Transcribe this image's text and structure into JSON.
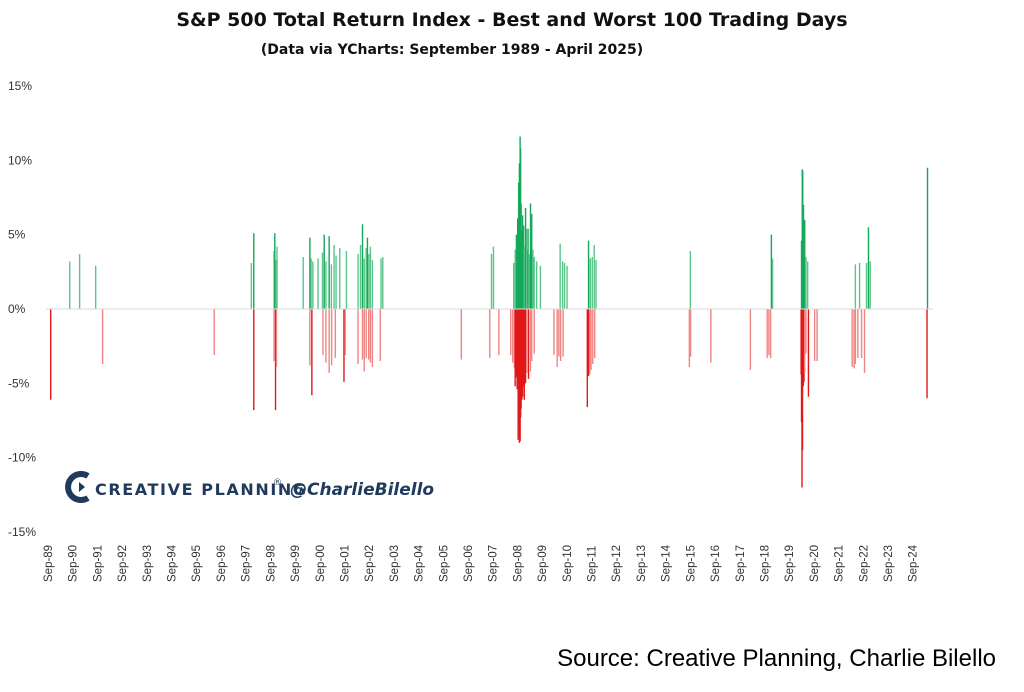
{
  "chart_data": {
    "type": "bar",
    "title": "S&P 500 Total Return Index - Best and Worst 100 Trading Days",
    "subtitle": "(Data via YCharts: September 1989 - April 2025)",
    "yticks": [
      "15%",
      "10%",
      "5%",
      "0%",
      "-5%",
      "-10%",
      "-15%"
    ],
    "ylim": [
      -15,
      15
    ],
    "xlim": [
      1989.67,
      2025.33
    ],
    "xticks": [
      {
        "label": "Sep-89",
        "x": 1989.67
      },
      {
        "label": "Sep-90",
        "x": 1990.67
      },
      {
        "label": "Sep-91",
        "x": 1991.67
      },
      {
        "label": "Sep-92",
        "x": 1992.67
      },
      {
        "label": "Sep-93",
        "x": 1993.67
      },
      {
        "label": "Sep-94",
        "x": 1994.67
      },
      {
        "label": "Sep-95",
        "x": 1995.67
      },
      {
        "label": "Sep-96",
        "x": 1996.67
      },
      {
        "label": "Sep-97",
        "x": 1997.67
      },
      {
        "label": "Sep-98",
        "x": 1998.67
      },
      {
        "label": "Sep-99",
        "x": 1999.67
      },
      {
        "label": "Sep-00",
        "x": 2000.67
      },
      {
        "label": "Sep-01",
        "x": 2001.67
      },
      {
        "label": "Sep-02",
        "x": 2002.67
      },
      {
        "label": "Sep-03",
        "x": 2003.67
      },
      {
        "label": "Sep-04",
        "x": 2004.67
      },
      {
        "label": "Sep-05",
        "x": 2005.67
      },
      {
        "label": "Sep-06",
        "x": 2006.67
      },
      {
        "label": "Sep-07",
        "x": 2007.67
      },
      {
        "label": "Sep-08",
        "x": 2008.67
      },
      {
        "label": "Sep-09",
        "x": 2009.67
      },
      {
        "label": "Sep-10",
        "x": 2010.67
      },
      {
        "label": "Sep-11",
        "x": 2011.67
      },
      {
        "label": "Sep-12",
        "x": 2012.67
      },
      {
        "label": "Sep-13",
        "x": 2013.67
      },
      {
        "label": "Sep-14",
        "x": 2014.67
      },
      {
        "label": "Sep-15",
        "x": 2015.67
      },
      {
        "label": "Sep-16",
        "x": 2016.67
      },
      {
        "label": "Sep-17",
        "x": 2017.67
      },
      {
        "label": "Sep-18",
        "x": 2018.67
      },
      {
        "label": "Sep-19",
        "x": 2019.67
      },
      {
        "label": "Sep-20",
        "x": 2020.67
      },
      {
        "label": "Sep-21",
        "x": 2021.67
      },
      {
        "label": "Sep-22",
        "x": 2022.67
      },
      {
        "label": "Sep-23",
        "x": 2023.67
      },
      {
        "label": "Sep-24",
        "x": 2024.67
      }
    ],
    "colors": {
      "best_light": "#5cc58b",
      "best_dark": "#14a85a",
      "worst_light": "#ef8585",
      "worst_dark": "#e01818"
    },
    "grid": false,
    "series": [
      {
        "name": "Best 100 Trading Days",
        "points": [
          [
            1990.55,
            3.2
          ],
          [
            1990.95,
            3.7
          ],
          [
            1991.6,
            2.9
          ],
          [
            1997.9,
            3.1
          ],
          [
            1998.0,
            5.1
          ],
          [
            1998.82,
            3.9
          ],
          [
            1998.85,
            5.1
          ],
          [
            1998.9,
            3.3
          ],
          [
            1998.94,
            4.2
          ],
          [
            2000.0,
            3.5
          ],
          [
            2000.27,
            4.8
          ],
          [
            2000.32,
            3.4
          ],
          [
            2000.39,
            3.2
          ],
          [
            2000.6,
            3.4
          ],
          [
            2000.78,
            3.8
          ],
          [
            2000.85,
            5.0
          ],
          [
            2000.92,
            3.2
          ],
          [
            2001.05,
            4.9
          ],
          [
            2001.14,
            3.0
          ],
          [
            2001.25,
            4.3
          ],
          [
            2001.33,
            3.6
          ],
          [
            2001.48,
            4.1
          ],
          [
            2001.75,
            3.9
          ],
          [
            2002.22,
            3.7
          ],
          [
            2002.32,
            4.3
          ],
          [
            2002.4,
            5.7
          ],
          [
            2002.47,
            3.4
          ],
          [
            2002.55,
            4.1
          ],
          [
            2002.6,
            4.8
          ],
          [
            2002.66,
            3.7
          ],
          [
            2002.72,
            4.2
          ],
          [
            2002.8,
            3.3
          ],
          [
            2003.15,
            3.4
          ],
          [
            2003.22,
            3.5
          ],
          [
            2007.62,
            3.7
          ],
          [
            2007.7,
            4.2
          ],
          [
            2008.52,
            3.1
          ],
          [
            2008.58,
            4.0
          ],
          [
            2008.63,
            5.0
          ],
          [
            2008.68,
            6.1
          ],
          [
            2008.72,
            8.5
          ],
          [
            2008.75,
            9.8
          ],
          [
            2008.78,
            11.6
          ],
          [
            2008.8,
            10.8
          ],
          [
            2008.82,
            7.1
          ],
          [
            2008.85,
            5.3
          ],
          [
            2008.88,
            6.3
          ],
          [
            2008.92,
            5.6
          ],
          [
            2008.95,
            4.2
          ],
          [
            2009.0,
            6.8
          ],
          [
            2009.02,
            5.4
          ],
          [
            2009.05,
            4.0
          ],
          [
            2009.1,
            5.4
          ],
          [
            2009.16,
            3.7
          ],
          [
            2009.2,
            7.1
          ],
          [
            2009.25,
            6.4
          ],
          [
            2009.3,
            4.0
          ],
          [
            2009.35,
            3.5
          ],
          [
            2009.45,
            3.2
          ],
          [
            2009.6,
            2.9
          ],
          [
            2010.4,
            4.4
          ],
          [
            2010.5,
            3.2
          ],
          [
            2010.58,
            3.1
          ],
          [
            2010.68,
            2.9
          ],
          [
            2011.55,
            4.6
          ],
          [
            2011.62,
            3.4
          ],
          [
            2011.7,
            3.5
          ],
          [
            2011.78,
            4.3
          ],
          [
            2011.85,
            3.3
          ],
          [
            2015.67,
            3.9
          ],
          [
            2018.95,
            5.0
          ],
          [
            2019.0,
            3.4
          ],
          [
            2020.17,
            4.6
          ],
          [
            2020.2,
            9.4
          ],
          [
            2020.22,
            9.3
          ],
          [
            2020.25,
            7.0
          ],
          [
            2020.3,
            6.0
          ],
          [
            2020.35,
            3.5
          ],
          [
            2020.42,
            3.2
          ],
          [
            2022.35,
            3.0
          ],
          [
            2022.52,
            3.1
          ],
          [
            2022.8,
            3.1
          ],
          [
            2022.88,
            5.5
          ],
          [
            2022.95,
            3.2
          ],
          [
            2025.27,
            9.5
          ]
        ]
      },
      {
        "name": "Worst 100 Trading Days",
        "points": [
          [
            1989.78,
            -6.1
          ],
          [
            1991.88,
            -3.7
          ],
          [
            1996.4,
            -3.1
          ],
          [
            1998.0,
            -6.8
          ],
          [
            1998.82,
            -3.5
          ],
          [
            1998.88,
            -6.8
          ],
          [
            1998.92,
            -3.9
          ],
          [
            2000.27,
            -3.8
          ],
          [
            2000.35,
            -5.8
          ],
          [
            2000.8,
            -3.1
          ],
          [
            2000.92,
            -3.6
          ],
          [
            2001.05,
            -4.3
          ],
          [
            2001.15,
            -3.8
          ],
          [
            2001.3,
            -3.3
          ],
          [
            2001.65,
            -4.9
          ],
          [
            2001.7,
            -3.1
          ],
          [
            2002.22,
            -3.7
          ],
          [
            2002.4,
            -3.4
          ],
          [
            2002.47,
            -4.2
          ],
          [
            2002.55,
            -3.3
          ],
          [
            2002.65,
            -3.4
          ],
          [
            2002.72,
            -3.6
          ],
          [
            2002.8,
            -3.9
          ],
          [
            2003.12,
            -3.5
          ],
          [
            2006.4,
            -3.4
          ],
          [
            2007.55,
            -3.3
          ],
          [
            2007.92,
            -3.1
          ],
          [
            2008.4,
            -3.1
          ],
          [
            2008.48,
            -3.6
          ],
          [
            2008.55,
            -4.0
          ],
          [
            2008.58,
            -5.2
          ],
          [
            2008.62,
            -4.6
          ],
          [
            2008.66,
            -5.4
          ],
          [
            2008.7,
            -8.8
          ],
          [
            2008.72,
            -7.6
          ],
          [
            2008.75,
            -9.0
          ],
          [
            2008.78,
            -8.9
          ],
          [
            2008.8,
            -7.3
          ],
          [
            2008.82,
            -6.7
          ],
          [
            2008.85,
            -6.1
          ],
          [
            2008.88,
            -5.9
          ],
          [
            2008.92,
            -5.2
          ],
          [
            2008.95,
            -6.1
          ],
          [
            2009.0,
            -5.0
          ],
          [
            2009.05,
            -4.3
          ],
          [
            2009.12,
            -4.7
          ],
          [
            2009.2,
            -4.2
          ],
          [
            2009.25,
            -3.5
          ],
          [
            2009.35,
            -3.0
          ],
          [
            2010.15,
            -3.1
          ],
          [
            2010.28,
            -3.9
          ],
          [
            2010.35,
            -3.2
          ],
          [
            2010.42,
            -3.5
          ],
          [
            2010.52,
            -3.2
          ],
          [
            2011.5,
            -6.6
          ],
          [
            2011.55,
            -4.5
          ],
          [
            2011.6,
            -4.4
          ],
          [
            2011.65,
            -4.1
          ],
          [
            2011.72,
            -3.7
          ],
          [
            2011.8,
            -3.3
          ],
          [
            2015.63,
            -3.9
          ],
          [
            2015.68,
            -3.2
          ],
          [
            2016.5,
            -3.6
          ],
          [
            2018.1,
            -4.1
          ],
          [
            2018.78,
            -3.3
          ],
          [
            2018.85,
            -3.1
          ],
          [
            2018.92,
            -3.3
          ],
          [
            2020.14,
            -4.4
          ],
          [
            2020.17,
            -7.6
          ],
          [
            2020.19,
            -12.0
          ],
          [
            2020.21,
            -9.5
          ],
          [
            2020.24,
            -5.2
          ],
          [
            2020.27,
            -4.9
          ],
          [
            2020.3,
            -4.3
          ],
          [
            2020.35,
            -3.0
          ],
          [
            2020.45,
            -5.9
          ],
          [
            2020.7,
            -3.5
          ],
          [
            2020.8,
            -3.5
          ],
          [
            2022.22,
            -3.9
          ],
          [
            2022.3,
            -4.0
          ],
          [
            2022.35,
            -3.7
          ],
          [
            2022.45,
            -3.3
          ],
          [
            2022.6,
            -3.3
          ],
          [
            2022.72,
            -4.3
          ],
          [
            2025.25,
            -6.0
          ]
        ]
      }
    ],
    "watermark": {
      "brand": "CREATIVE PLANNING",
      "trademark": "®",
      "handle": "@CharlieBilello"
    },
    "source": "Source:  Creative Planning, Charlie Bilello"
  }
}
